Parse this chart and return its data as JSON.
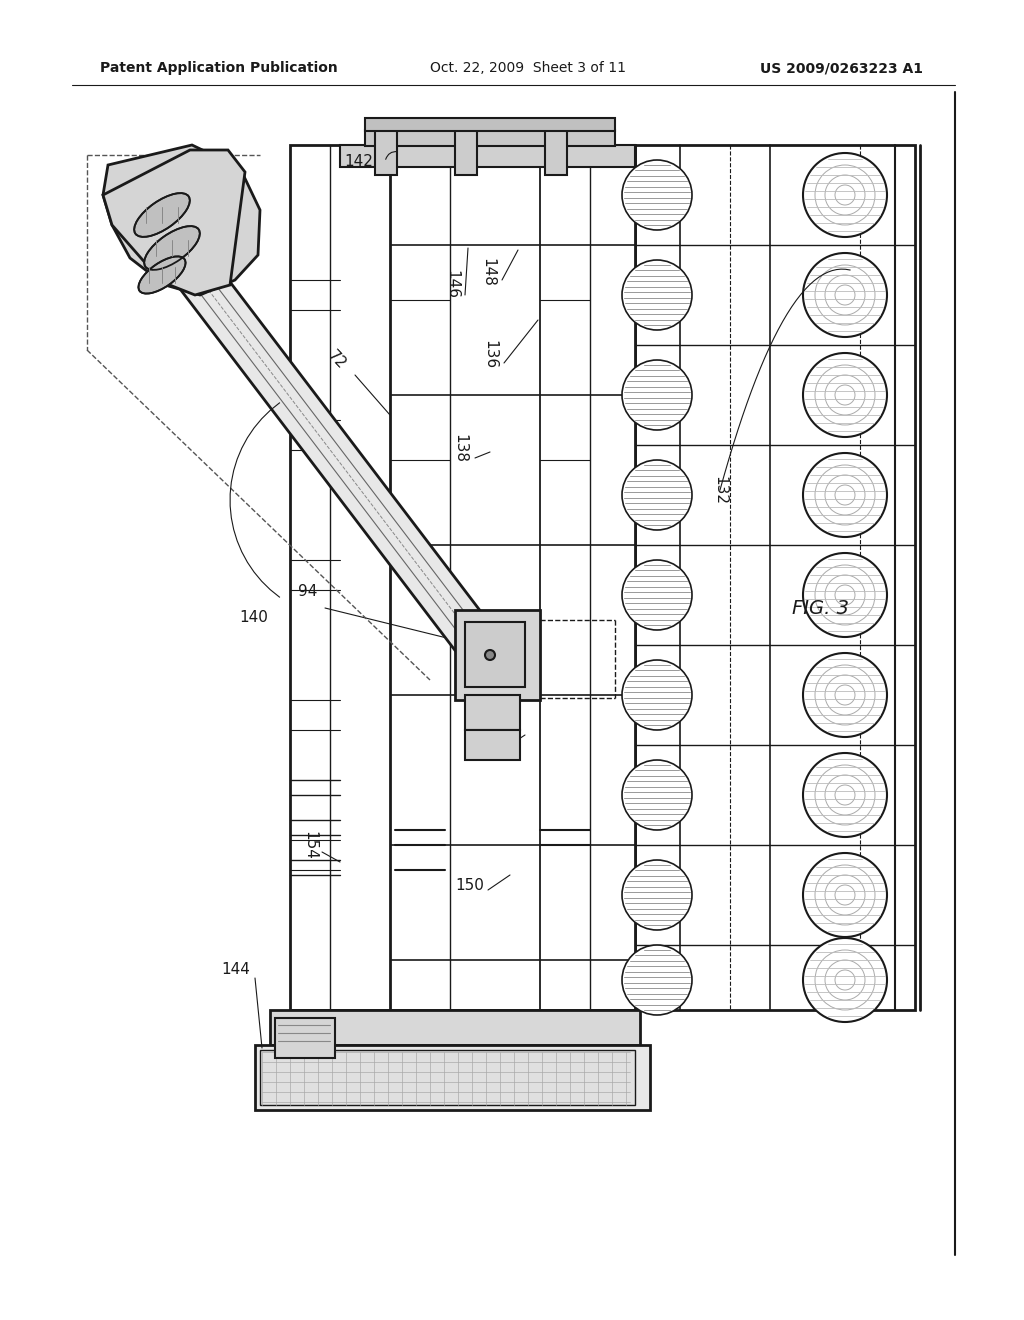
{
  "bg_color": "#ffffff",
  "lc": "#1a1a1a",
  "header_left": "Patent Application Publication",
  "header_mid": "Oct. 22, 2009  Sheet 3 of 11",
  "header_right": "US 2009/0263223 A1",
  "fig_label": "FIG. 3",
  "label_fs": 11,
  "header_fs": 10,
  "fig_label_fs": 14
}
